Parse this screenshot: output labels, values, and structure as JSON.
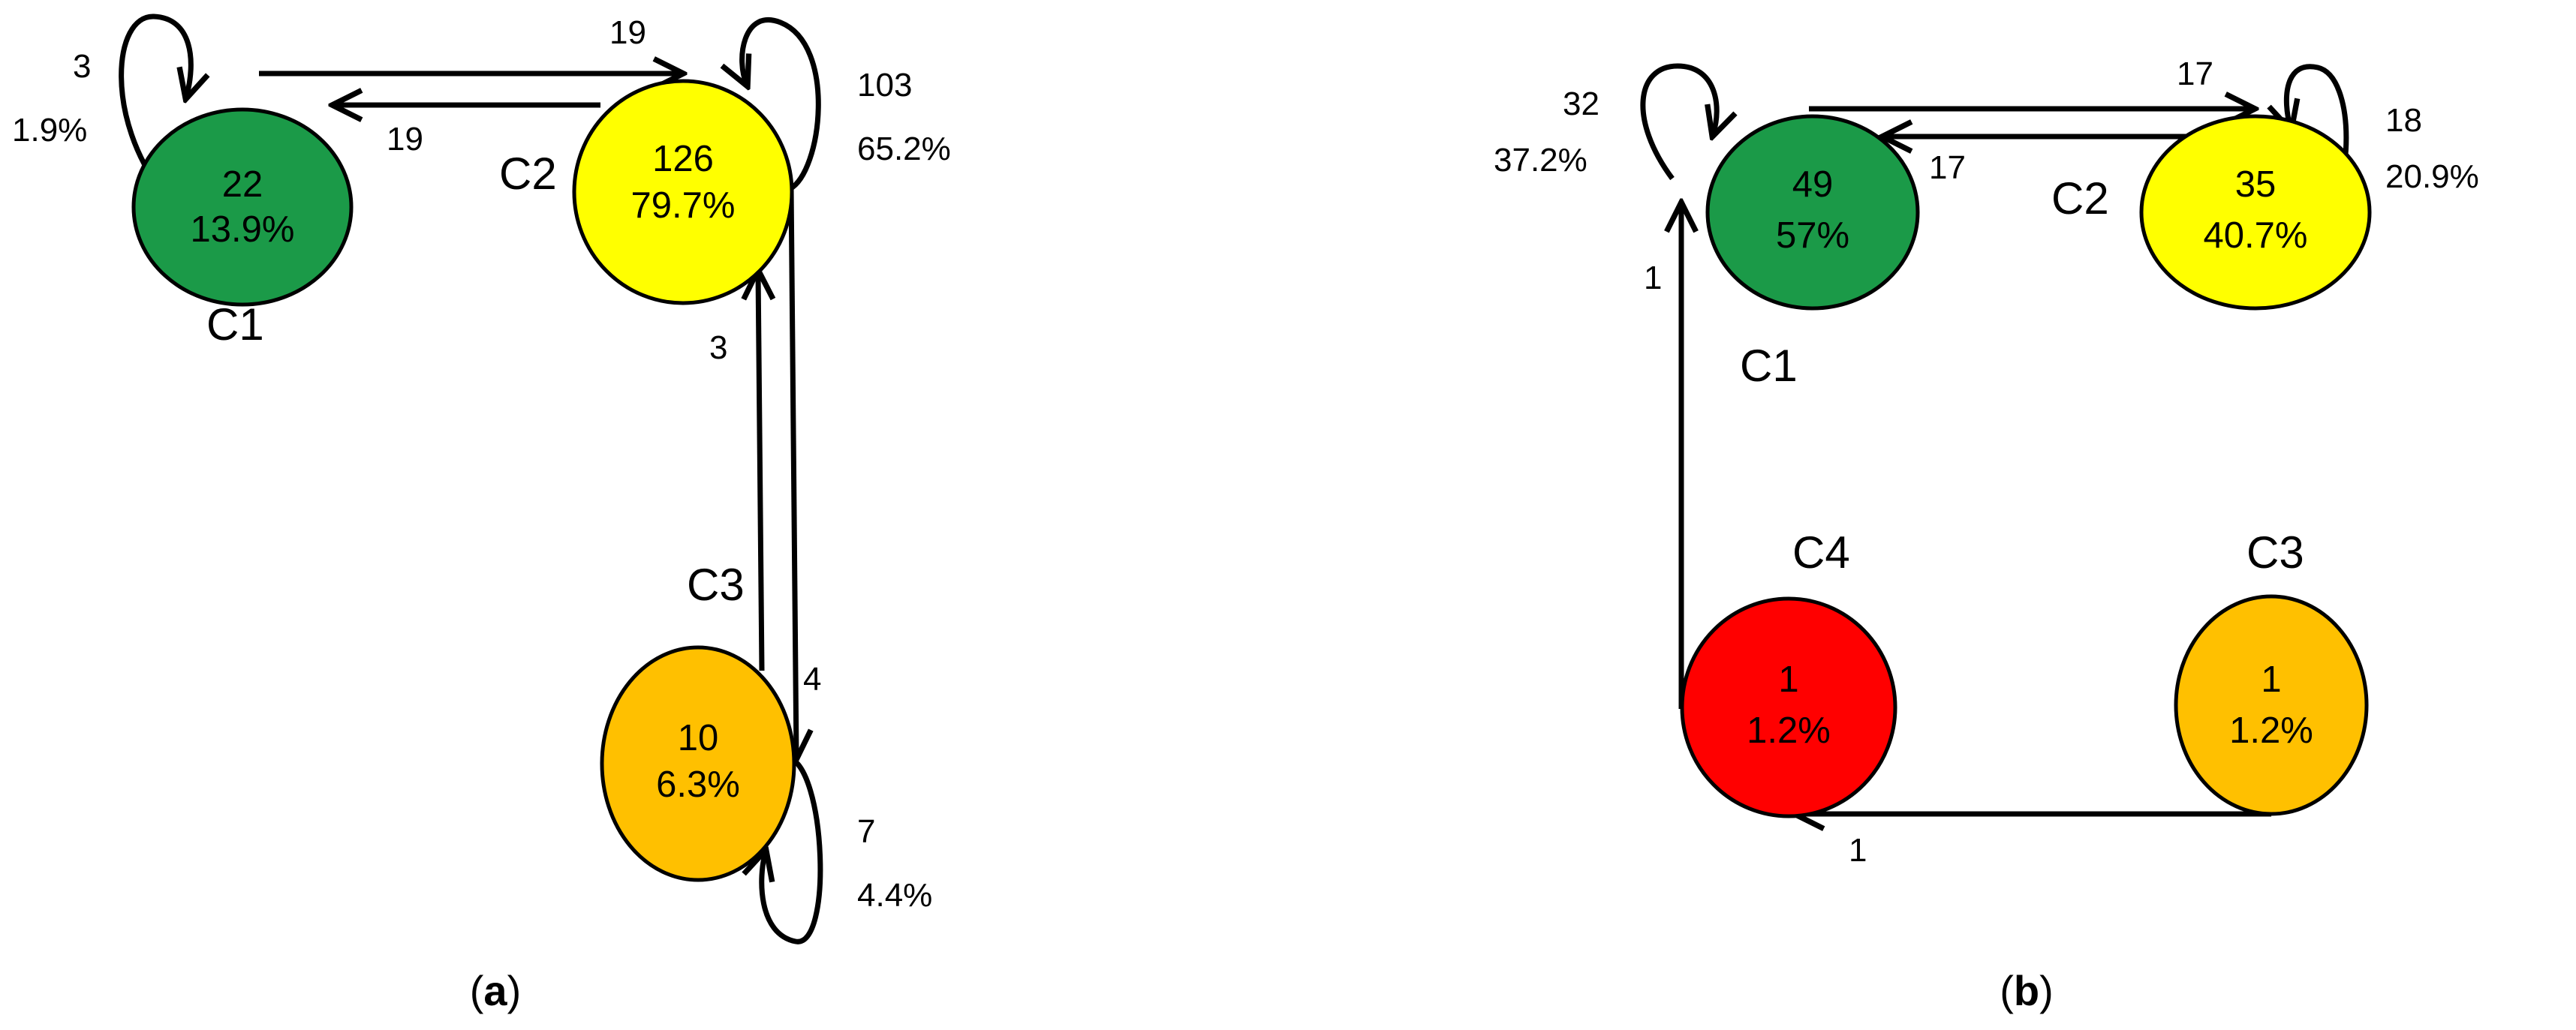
{
  "panels": [
    {
      "id": "a",
      "caption": {
        "open": "(",
        "letter": "a",
        "close": ")"
      },
      "nodes": [
        {
          "name": "C1",
          "count": "22",
          "percent": "13.9%",
          "color": "#1b9a48"
        },
        {
          "name": "C2",
          "count": "126",
          "percent": "79.7%",
          "color": "#ffff00"
        },
        {
          "name": "C3",
          "count": "10",
          "percent": "6.3%",
          "color": "#ffc000"
        }
      ],
      "edges": [
        {
          "from": "C1",
          "to": "C1",
          "label": "3",
          "sublabel": "1.9%"
        },
        {
          "from": "C1",
          "to": "C2",
          "label": "19"
        },
        {
          "from": "C2",
          "to": "C1",
          "label": "19"
        },
        {
          "from": "C2",
          "to": "C2",
          "label": "103",
          "sublabel": "65.2%"
        },
        {
          "from": "C3",
          "to": "C2",
          "label": "3"
        },
        {
          "from": "C2",
          "to": "C3",
          "label": "4"
        },
        {
          "from": "C3",
          "to": "C3",
          "label": "7",
          "sublabel": "4.4%"
        }
      ]
    },
    {
      "id": "b",
      "caption": {
        "open": "(",
        "letter": "b",
        "close": ")"
      },
      "nodes": [
        {
          "name": "C1",
          "count": "49",
          "percent": "57%",
          "color": "#1b9a48"
        },
        {
          "name": "C2",
          "count": "35",
          "percent": "40.7%",
          "color": "#ffff00"
        },
        {
          "name": "C3",
          "count": "1",
          "percent": "1.2%",
          "color": "#ffc000"
        },
        {
          "name": "C4",
          "count": "1",
          "percent": "1.2%",
          "color": "#ff0000"
        }
      ],
      "edges": [
        {
          "from": "C1",
          "to": "C1",
          "label": "32",
          "sublabel": "37.2%"
        },
        {
          "from": "C1",
          "to": "C2",
          "label": "17"
        },
        {
          "from": "C2",
          "to": "C1",
          "label": "17"
        },
        {
          "from": "C2",
          "to": "C2",
          "label": "18",
          "sublabel": "20.9%"
        },
        {
          "from": "C4",
          "to": "C1",
          "label": "1"
        },
        {
          "from": "C3",
          "to": "C4",
          "label": "1"
        }
      ]
    }
  ]
}
